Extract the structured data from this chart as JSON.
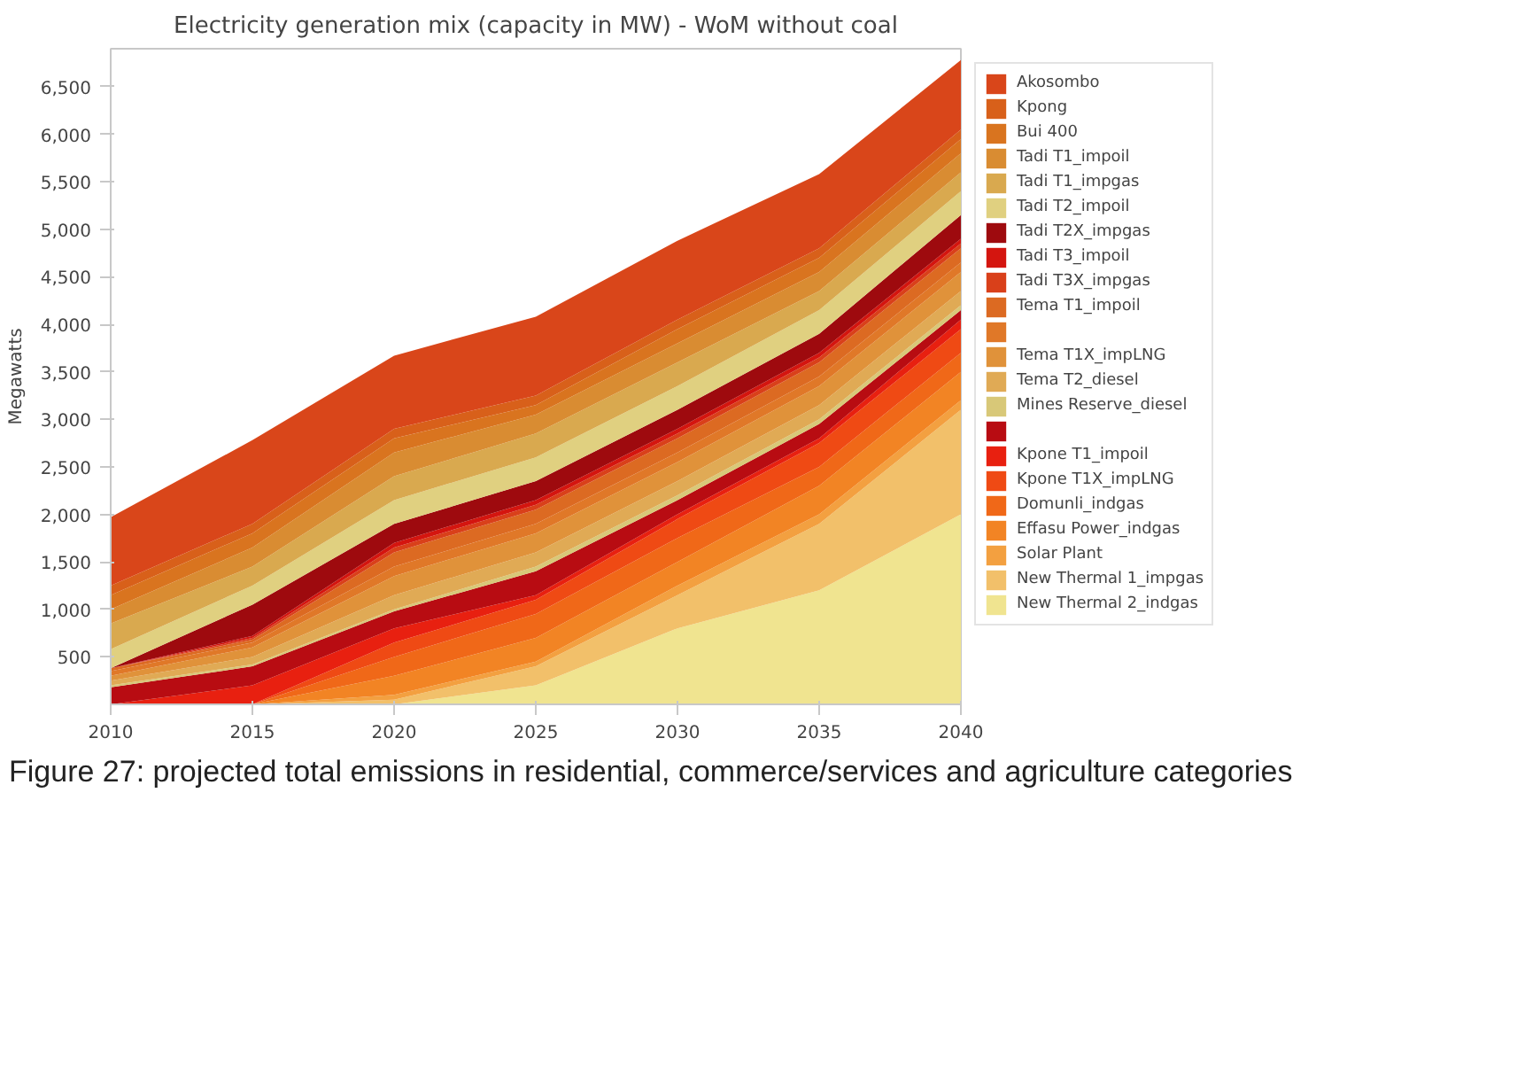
{
  "chart_data": {
    "type": "area",
    "stacked": true,
    "title": "Electricity generation mix (capacity in MW) - WoM without coal",
    "ylabel": "Megawatts",
    "x": [
      2010,
      2015,
      2020,
      2025,
      2030,
      2035,
      2040
    ],
    "xlim": [
      2010,
      2040
    ],
    "xticks": [
      2010,
      2015,
      2020,
      2025,
      2030,
      2035,
      2040
    ],
    "ylim": [
      0,
      6900
    ],
    "yticks": [
      {
        "value": 500,
        "label": "500"
      },
      {
        "value": 1000,
        "label": "1,000"
      },
      {
        "value": 1500,
        "label": "1,500"
      },
      {
        "value": 2000,
        "label": "2,000"
      },
      {
        "value": 2500,
        "label": "2,500"
      },
      {
        "value": 3000,
        "label": "3,000"
      },
      {
        "value": 3500,
        "label": "3,500"
      },
      {
        "value": 4000,
        "label": "4,000"
      },
      {
        "value": 4500,
        "label": "4,500"
      },
      {
        "value": 5000,
        "label": "5,000"
      },
      {
        "value": 5500,
        "label": "5,500"
      },
      {
        "value": 6000,
        "label": "6,000"
      },
      {
        "value": 6500,
        "label": "6,500"
      }
    ],
    "grid": false,
    "legend": "right",
    "annotations": [
      "Figure 27: projected total emissions in residential, commerce/services and agriculture categories"
    ],
    "series": [
      {
        "name": "New Thermal 2_indgas",
        "color": "#f0e490",
        "values": [
          0,
          0,
          0,
          200,
          800,
          1200,
          2000
        ]
      },
      {
        "name": "New Thermal 1_impgas",
        "color": "#f2c06a",
        "values": [
          0,
          0,
          50,
          200,
          350,
          700,
          1100
        ]
      },
      {
        "name": "Solar Plant",
        "color": "#f3a040",
        "values": [
          0,
          0,
          50,
          50,
          100,
          100,
          100
        ]
      },
      {
        "name": "Effasu Power_indgas",
        "color": "#f28424",
        "values": [
          0,
          0,
          200,
          250,
          250,
          300,
          300
        ]
      },
      {
        "name": "Domunli_indgas",
        "color": "#f06818",
        "values": [
          0,
          0,
          200,
          250,
          250,
          200,
          200
        ]
      },
      {
        "name": "Kpone T1X_impLNG",
        "color": "#ef4a14",
        "values": [
          0,
          0,
          150,
          150,
          200,
          250,
          250
        ]
      },
      {
        "name": "Kpone T1_impoil",
        "color": "#e82010",
        "values": [
          0,
          200,
          150,
          50,
          50,
          50,
          100
        ]
      },
      {
        "name": null,
        "color": "#b80c12",
        "values": [
          180,
          200,
          180,
          250,
          150,
          150,
          100
        ]
      },
      {
        "name": "Mines Reserve_diesel",
        "color": "#d8c878",
        "values": [
          20,
          20,
          20,
          50,
          50,
          50,
          50
        ]
      },
      {
        "name": "Tema T2_diesel",
        "color": "#e0aa55",
        "values": [
          50,
          80,
          150,
          150,
          150,
          150,
          150
        ]
      },
      {
        "name": "Tema T1X_impLNG",
        "color": "#e0923a",
        "values": [
          50,
          100,
          200,
          200,
          200,
          200,
          200
        ]
      },
      {
        "name": null,
        "color": "#e07828",
        "values": [
          50,
          50,
          100,
          100,
          100,
          100,
          100
        ]
      },
      {
        "name": "Tema T1_impoil",
        "color": "#dc6a22",
        "values": [
          30,
          30,
          150,
          150,
          150,
          150,
          150
        ]
      },
      {
        "name": "Tadi T3X_impgas",
        "color": "#d9401a",
        "values": [
          0,
          20,
          50,
          50,
          50,
          50,
          50
        ]
      },
      {
        "name": "Tadi T3_impoil",
        "color": "#d4150f",
        "values": [
          0,
          20,
          50,
          50,
          50,
          50,
          50
        ]
      },
      {
        "name": "Tadi T2X_impgas",
        "color": "#9e0a0e",
        "values": [
          0,
          330,
          200,
          200,
          200,
          200,
          250
        ]
      },
      {
        "name": "Tadi T2_impoil",
        "color": "#e0d080",
        "values": [
          200,
          200,
          250,
          250,
          250,
          250,
          250
        ]
      },
      {
        "name": "Tadi T1_impgas",
        "color": "#d9a94f",
        "values": [
          270,
          200,
          250,
          250,
          250,
          200,
          200
        ]
      },
      {
        "name": "Tadi T1_impoil",
        "color": "#d98c32",
        "values": [
          150,
          200,
          250,
          200,
          200,
          200,
          200
        ]
      },
      {
        "name": "Bui 400",
        "color": "#d9741f",
        "values": [
          150,
          150,
          150,
          100,
          150,
          150,
          150
        ]
      },
      {
        "name": "Kpong",
        "color": "#d8601a",
        "values": [
          100,
          100,
          100,
          100,
          100,
          100,
          100
        ]
      },
      {
        "name": "Akosombo",
        "color": "#d9461a",
        "values": [
          720,
          880,
          770,
          830,
          830,
          780,
          730
        ]
      }
    ]
  }
}
